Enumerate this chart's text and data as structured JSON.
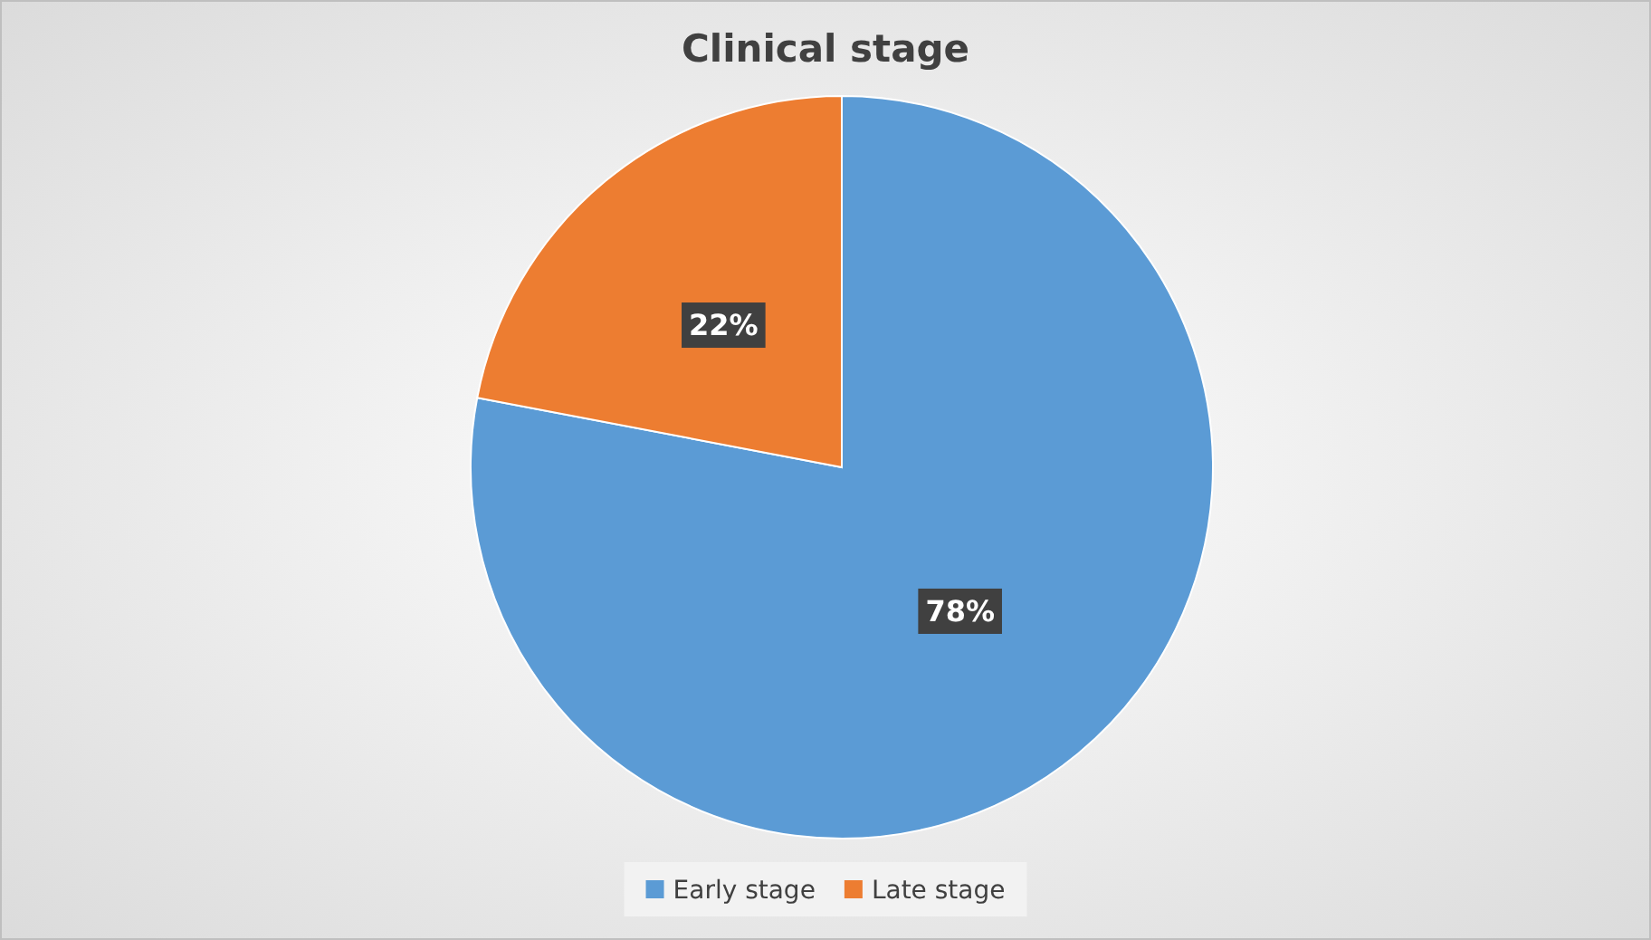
{
  "chart_data": {
    "type": "pie",
    "title": "Clinical stage",
    "categories": [
      "Early stage",
      "Late stage"
    ],
    "values": [
      78,
      22
    ],
    "colors": [
      "#5b9bd5",
      "#ed7d31"
    ],
    "value_labels": [
      "78%",
      "22%"
    ],
    "legend": "bottom"
  }
}
